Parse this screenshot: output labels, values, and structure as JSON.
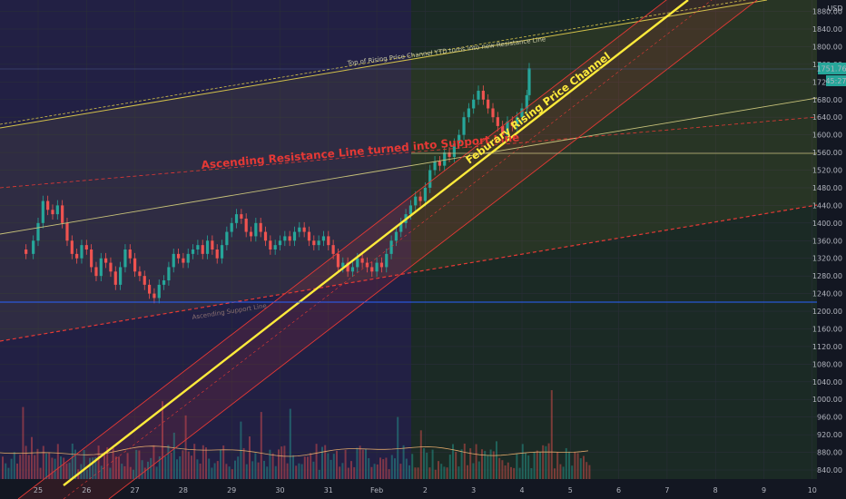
{
  "chart_data": {
    "type": "candlestick",
    "currency": "USD",
    "x_ticks": [
      "25",
      "26",
      "27",
      "28",
      "29",
      "30",
      "31",
      "Feb",
      "2",
      "3",
      "4",
      "5",
      "6",
      "7",
      "8",
      "9",
      "10"
    ],
    "y_ticks": [
      840,
      880,
      920,
      960,
      1000,
      1040,
      1080,
      1120,
      1160,
      1200,
      1240,
      1280,
      1320,
      1360,
      1400,
      1440,
      1480,
      1520,
      1560,
      1600,
      1640,
      1680,
      1720,
      1760,
      1800,
      1840,
      1880
    ],
    "ylim": [
      810,
      1905
    ],
    "xlim": [
      24.6,
      35.15
    ],
    "last_price": "1751.76",
    "countdown": "45:27",
    "candle_closes": [
      [
        24.6,
        1340
      ],
      [
        24.75,
        1330
      ],
      [
        24.9,
        1360
      ],
      [
        25.0,
        1400
      ],
      [
        25.1,
        1450
      ],
      [
        25.2,
        1430
      ],
      [
        25.3,
        1420
      ],
      [
        25.4,
        1440
      ],
      [
        25.5,
        1400
      ],
      [
        25.6,
        1360
      ],
      [
        25.7,
        1330
      ],
      [
        25.8,
        1320
      ],
      [
        25.9,
        1350
      ],
      [
        26.0,
        1340
      ],
      [
        26.1,
        1300
      ],
      [
        26.2,
        1280
      ],
      [
        26.3,
        1320
      ],
      [
        26.4,
        1310
      ],
      [
        26.5,
        1290
      ],
      [
        26.6,
        1260
      ],
      [
        26.7,
        1300
      ],
      [
        26.8,
        1340
      ],
      [
        26.9,
        1320
      ],
      [
        27.0,
        1290
      ],
      [
        27.1,
        1280
      ],
      [
        27.2,
        1260
      ],
      [
        27.3,
        1240
      ],
      [
        27.4,
        1230
      ],
      [
        27.5,
        1260
      ],
      [
        27.6,
        1270
      ],
      [
        27.7,
        1300
      ],
      [
        27.8,
        1330
      ],
      [
        27.9,
        1320
      ],
      [
        28.0,
        1310
      ],
      [
        28.1,
        1330
      ],
      [
        28.2,
        1340
      ],
      [
        28.3,
        1350
      ],
      [
        28.4,
        1330
      ],
      [
        28.5,
        1360
      ],
      [
        28.6,
        1340
      ],
      [
        28.7,
        1320
      ],
      [
        28.8,
        1350
      ],
      [
        28.9,
        1380
      ],
      [
        29.0,
        1400
      ],
      [
        29.1,
        1420
      ],
      [
        29.2,
        1410
      ],
      [
        29.3,
        1380
      ],
      [
        29.4,
        1370
      ],
      [
        29.5,
        1400
      ],
      [
        29.6,
        1380
      ],
      [
        29.7,
        1360
      ],
      [
        29.8,
        1340
      ],
      [
        29.9,
        1350
      ],
      [
        30.0,
        1360
      ],
      [
        30.1,
        1370
      ],
      [
        30.2,
        1360
      ],
      [
        30.3,
        1380
      ],
      [
        30.4,
        1390
      ],
      [
        30.5,
        1380
      ],
      [
        30.6,
        1360
      ],
      [
        30.7,
        1350
      ],
      [
        30.8,
        1360
      ],
      [
        30.9,
        1370
      ],
      [
        31.0,
        1350
      ],
      [
        31.1,
        1330
      ],
      [
        31.2,
        1300
      ],
      [
        31.3,
        1310
      ],
      [
        31.4,
        1290
      ],
      [
        31.5,
        1300
      ],
      [
        31.6,
        1320
      ],
      [
        31.7,
        1310
      ],
      [
        31.8,
        1300
      ],
      [
        31.9,
        1290
      ],
      [
        32.0,
        1310
      ],
      [
        32.1,
        1300
      ],
      [
        32.2,
        1330
      ],
      [
        32.3,
        1360
      ],
      [
        32.4,
        1380
      ],
      [
        32.5,
        1400
      ],
      [
        32.6,
        1420
      ],
      [
        32.7,
        1440
      ],
      [
        32.8,
        1460
      ],
      [
        32.9,
        1450
      ],
      [
        33.0,
        1480
      ],
      [
        33.1,
        1520
      ],
      [
        33.2,
        1540
      ],
      [
        33.3,
        1530
      ],
      [
        33.4,
        1560
      ],
      [
        33.5,
        1550
      ],
      [
        33.6,
        1580
      ],
      [
        33.7,
        1600
      ],
      [
        33.8,
        1640
      ],
      [
        33.9,
        1660
      ],
      [
        34.0,
        1680
      ],
      [
        34.1,
        1700
      ],
      [
        34.2,
        1680
      ],
      [
        34.3,
        1660
      ],
      [
        34.4,
        1640
      ],
      [
        34.5,
        1620
      ],
      [
        34.6,
        1600
      ],
      [
        34.7,
        1630
      ],
      [
        34.8,
        1620
      ],
      [
        34.9,
        1640
      ],
      [
        35.0,
        1660
      ],
      [
        35.1,
        1690
      ],
      [
        35.15,
        1751
      ]
    ],
    "annotations": {
      "top_channel_label": "Top of Rising Price Channel YTD turns into new Resistance Line",
      "support_label": "Ascending Resistance Line turned into Support Line",
      "feb_channel_label": "Feburary Rising Price Channel",
      "ascending_support_label": "Ascending Support Line"
    },
    "colors": {
      "background_left": "#222044",
      "background_right": "#1b2a25",
      "grid": "#2a2e39",
      "up": "#26a69a",
      "down": "#ef5350",
      "annotation_yellow": "#ffeb3b",
      "annotation_red": "#e53935",
      "label_text": "#b2b5be",
      "price_tag": "#26a69a",
      "hline_blue": "#2962ff"
    }
  }
}
